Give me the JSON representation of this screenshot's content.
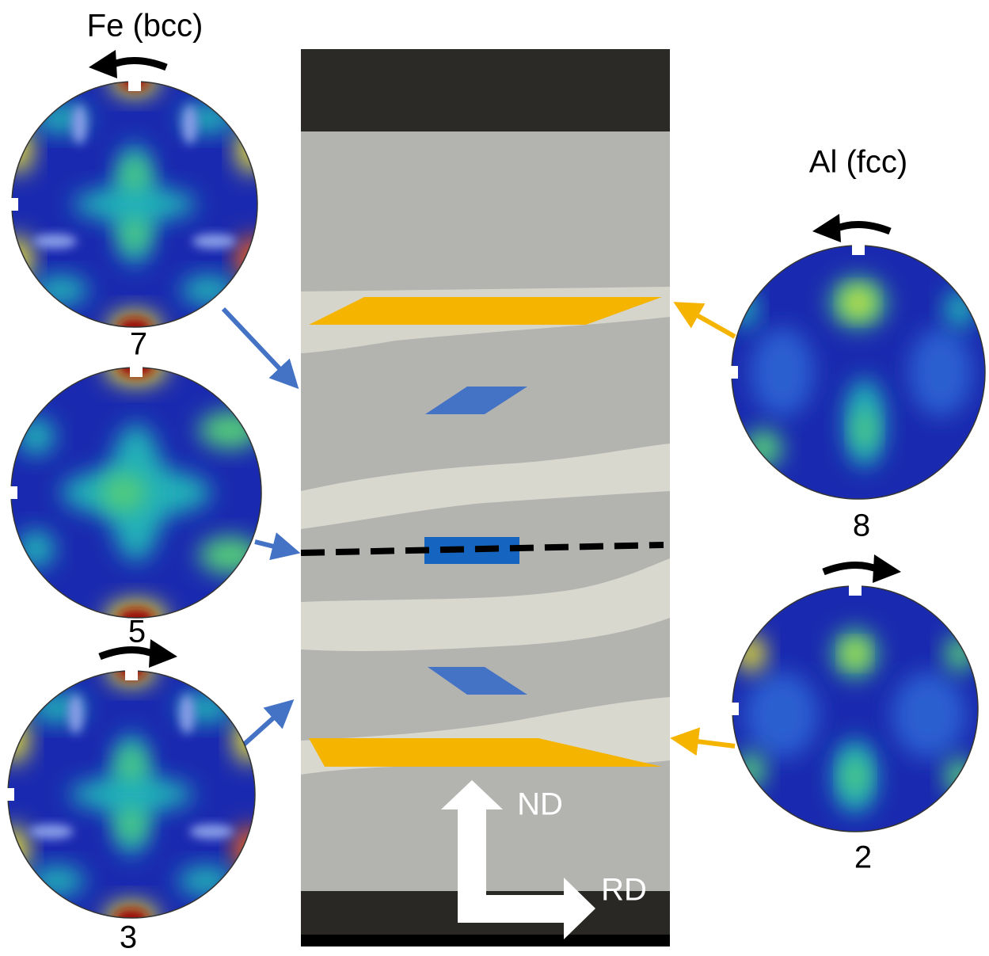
{
  "left_panel": {
    "title": "Fe (bcc)",
    "pole_figures": [
      {
        "label": "7"
      },
      {
        "label": "5"
      },
      {
        "label": "3"
      }
    ]
  },
  "right_panel": {
    "title": "Al (fcc)",
    "pole_figures": [
      {
        "label": "8"
      },
      {
        "label": "2"
      }
    ]
  },
  "micrograph": {
    "directions": [
      "ND",
      "RD"
    ]
  }
}
